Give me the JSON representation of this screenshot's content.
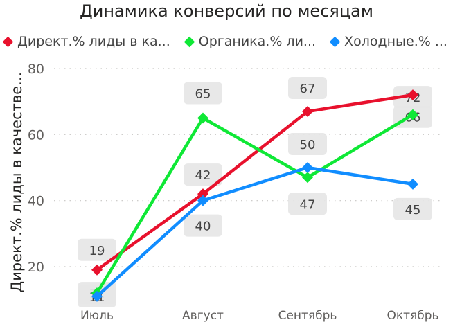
{
  "chart_data": {
    "type": "line",
    "title": "Динамика конверсий по месяцам",
    "ylabel": "Директ.% лиды в качестве...",
    "xlabel": "",
    "categories": [
      "Июль",
      "Август",
      "Сентябрь",
      "Октябрь"
    ],
    "ylim": [
      10,
      80
    ],
    "yticks": [
      20,
      40,
      60,
      80
    ],
    "grid": true,
    "legend_position": "top-left",
    "series": [
      {
        "name": "Директ.% лиды в ка...",
        "legend": "Директ.% лиды в ка...",
        "color": "#E8112D",
        "values": [
          19,
          42,
          67,
          72
        ],
        "labels": [
          "19",
          "42",
          "67",
          "72"
        ]
      },
      {
        "name": "Органика.% ли...",
        "legend": "Органика.% ли...",
        "color": "#0FE836",
        "values": [
          12,
          65,
          47,
          66
        ],
        "labels": [
          "12",
          "65",
          "47",
          "66"
        ]
      },
      {
        "name": "Холодные.% ...",
        "legend": "Холодные.% ...",
        "color": "#118DFF",
        "values": [
          11,
          40,
          50,
          45
        ],
        "labels": [
          "11",
          "40",
          "50",
          "45"
        ]
      }
    ]
  }
}
